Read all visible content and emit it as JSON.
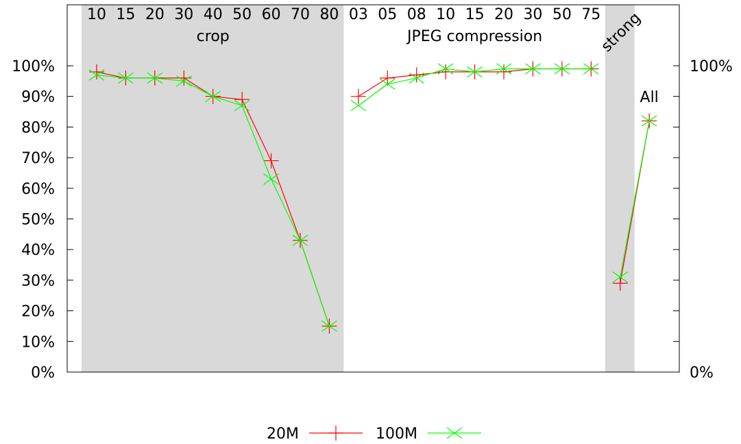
{
  "chart_data": {
    "type": "line",
    "ylim": [
      0,
      100
    ],
    "y_ticks": [
      "0%",
      "10%",
      "20%",
      "30%",
      "40%",
      "50%",
      "60%",
      "70%",
      "80%",
      "90%",
      "100%"
    ],
    "y2_ticks": [
      "0%",
      "100%"
    ],
    "categories": [
      "10",
      "15",
      "20",
      "30",
      "40",
      "50",
      "60",
      "70",
      "80",
      "03",
      "05",
      "08",
      "10",
      "15",
      "20",
      "30",
      "50",
      "75",
      "strong",
      "All"
    ],
    "top_labels": [
      "10",
      "15",
      "20",
      "30",
      "40",
      "50",
      "60",
      "70",
      "80",
      "03",
      "05",
      "08",
      "10",
      "15",
      "20",
      "30",
      "50",
      "75"
    ],
    "sections": [
      {
        "label": "crop",
        "shaded": true,
        "from_index": 0,
        "to_index": 8
      },
      {
        "label": "JPEG compression",
        "shaded": false,
        "from_index": 9,
        "to_index": 17
      },
      {
        "label": "strong",
        "shaded": true,
        "from_index": 18,
        "to_index": 18
      },
      {
        "label": "All",
        "shaded": false,
        "from_index": 19,
        "to_index": 19
      }
    ],
    "shade_color": "#d9d9d9",
    "series": [
      {
        "name": "20M",
        "color": "#ff0000",
        "marker": "plus",
        "segments": [
          [
            0,
            8
          ],
          [
            9,
            17
          ],
          [
            18,
            19
          ]
        ],
        "values": [
          98,
          96,
          96,
          96,
          90,
          89,
          69,
          43,
          15,
          90,
          96,
          97,
          98,
          98,
          98,
          99,
          99,
          99,
          29,
          82
        ]
      },
      {
        "name": "100M",
        "color": "#00ff00",
        "marker": "x",
        "segments": [
          [
            0,
            8
          ],
          [
            9,
            17
          ],
          [
            18,
            19
          ]
        ],
        "values": [
          97,
          96,
          96,
          95,
          90,
          87,
          63,
          43,
          15,
          87,
          94,
          96,
          99,
          98,
          99,
          99,
          99,
          99,
          31,
          82
        ]
      }
    ],
    "grid": false,
    "legend_position": "bottom-center"
  }
}
